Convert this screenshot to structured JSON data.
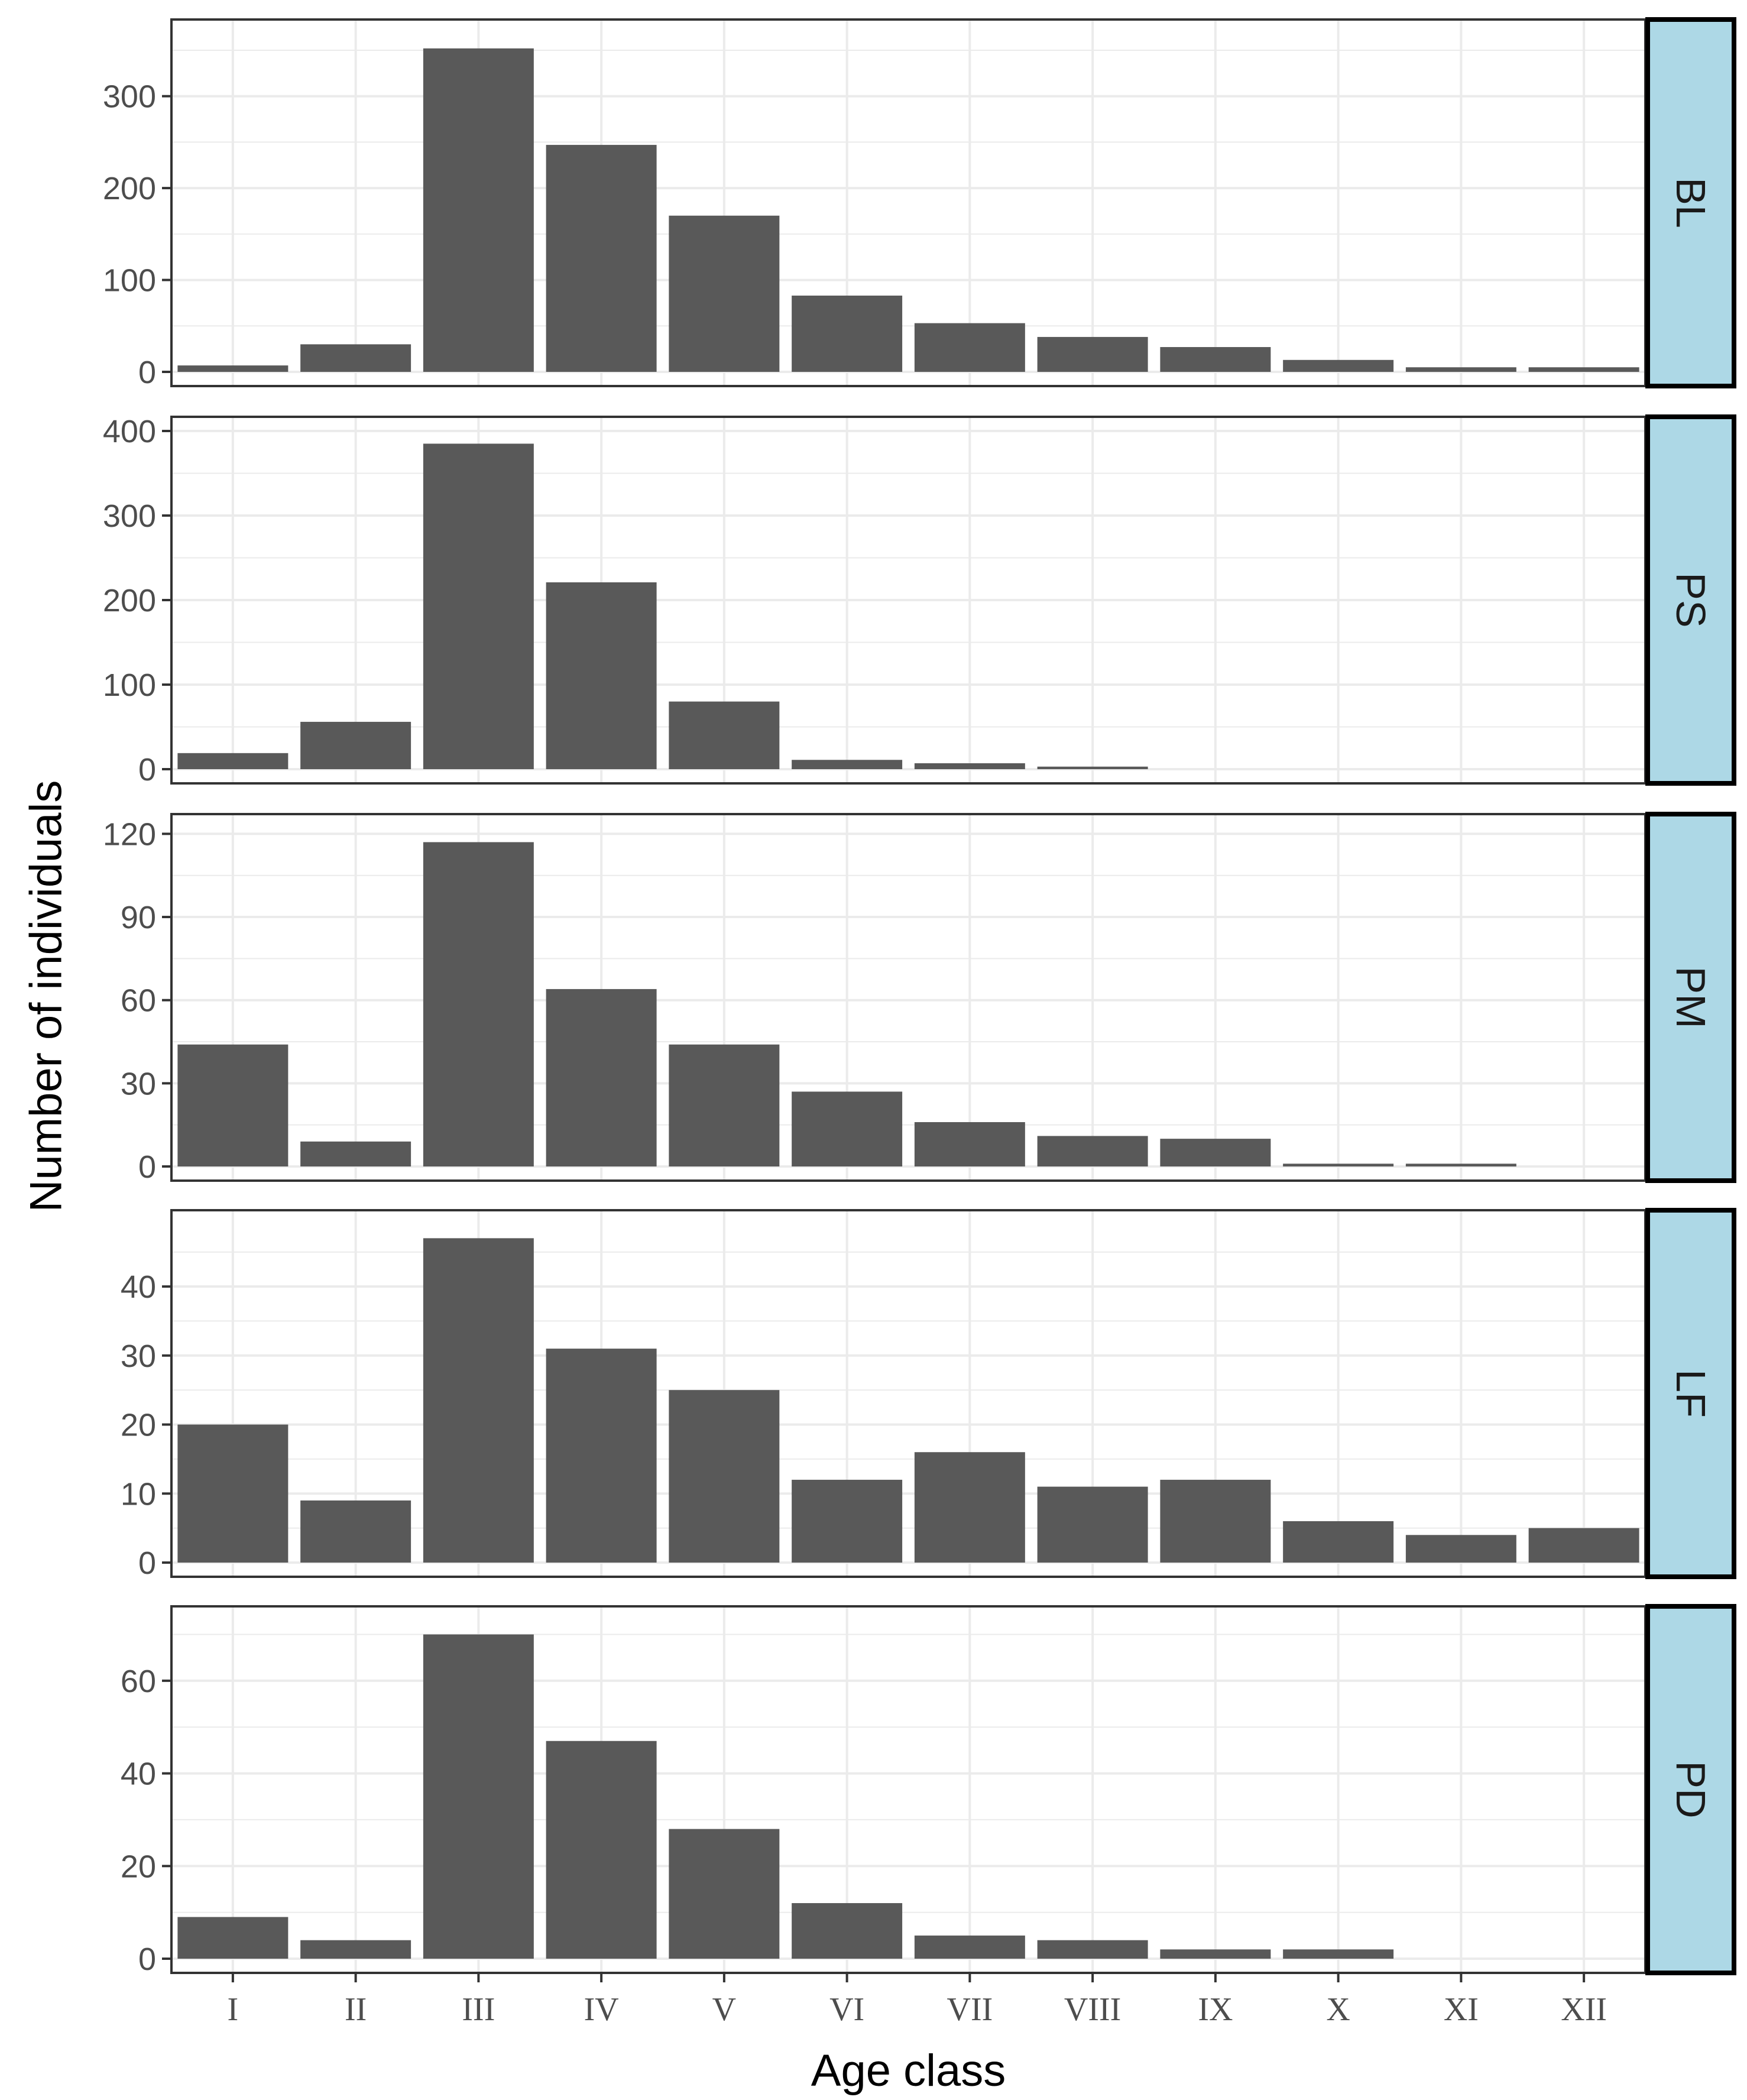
{
  "chart_data": {
    "type": "bar",
    "layout": "facet-rows",
    "xlabel": "Age class",
    "ylabel": "Number of individuals",
    "categories": [
      "I",
      "II",
      "III",
      "IV",
      "V",
      "VI",
      "VII",
      "VIII",
      "IX",
      "X",
      "XI",
      "XII"
    ],
    "grid": true,
    "colors": {
      "bar": "#595959",
      "strip_fill": "#add8e6",
      "grid": "#ebebeb",
      "frame": "#333333"
    },
    "panels": [
      {
        "label": "BL",
        "ylim": [
          0,
          368
        ],
        "yticks": [
          0,
          100,
          200,
          300
        ],
        "values": [
          7,
          30,
          352,
          247,
          170,
          83,
          53,
          38,
          27,
          13,
          5,
          5
        ]
      },
      {
        "label": "PS",
        "ylim": [
          0,
          400
        ],
        "yticks": [
          0,
          100,
          200,
          300,
          400
        ],
        "values": [
          19,
          56,
          385,
          221,
          80,
          11,
          7,
          3,
          0,
          0,
          0,
          0
        ]
      },
      {
        "label": "PM",
        "ylim": [
          0,
          122
        ],
        "yticks": [
          0,
          30,
          60,
          90,
          120
        ],
        "values": [
          44,
          9,
          117,
          64,
          44,
          27,
          16,
          11,
          10,
          1,
          1,
          0
        ]
      },
      {
        "label": "LF",
        "ylim": [
          0,
          49
        ],
        "yticks": [
          0,
          10,
          20,
          30,
          40
        ],
        "values": [
          20,
          9,
          47,
          31,
          25,
          12,
          16,
          11,
          12,
          6,
          4,
          5
        ]
      },
      {
        "label": "PD",
        "ylim": [
          0,
          73
        ],
        "yticks": [
          0,
          20,
          40,
          60
        ],
        "values": [
          9,
          4,
          70,
          47,
          28,
          12,
          5,
          4,
          2,
          2,
          0,
          0
        ]
      }
    ]
  }
}
